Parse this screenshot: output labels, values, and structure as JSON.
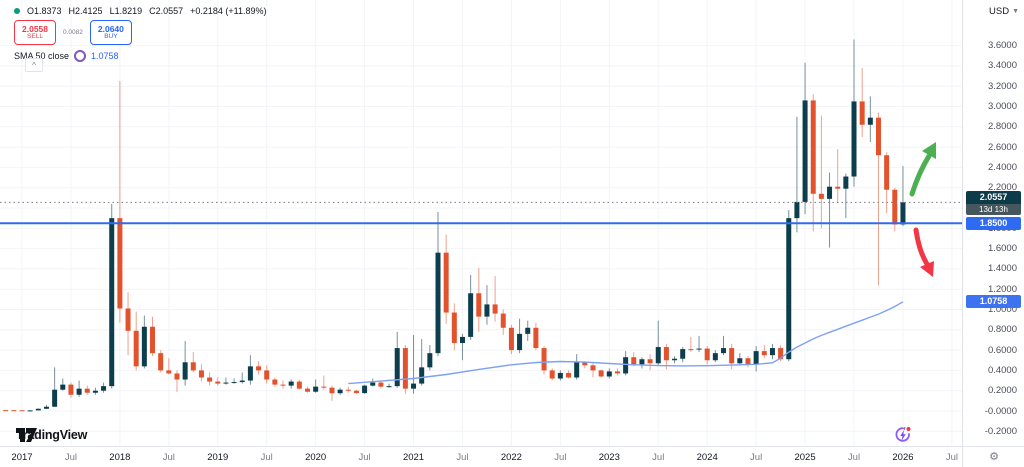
{
  "header": {
    "status_dot_color": "#089981",
    "ohlc": {
      "open": "O1.8373",
      "high": "H2.4125",
      "low": "L1.8219",
      "close": "C2.0557",
      "change": "+0.2184 (+11.89%)"
    },
    "sell": {
      "price": "2.0558",
      "label": "SELL"
    },
    "buy": {
      "price": "2.0640",
      "label": "BUY"
    },
    "spread": "0.0082",
    "indicator": {
      "name": "SMA 50 close",
      "value": "1.0758"
    },
    "collapse_label": "^"
  },
  "price_axis": {
    "currency": "USD",
    "ticks": [
      {
        "label": "3.6000",
        "value": 3.6
      },
      {
        "label": "3.4000",
        "value": 3.4
      },
      {
        "label": "3.2000",
        "value": 3.2
      },
      {
        "label": "3.0000",
        "value": 3.0
      },
      {
        "label": "2.8000",
        "value": 2.8
      },
      {
        "label": "2.6000",
        "value": 2.6
      },
      {
        "label": "2.4000",
        "value": 2.4
      },
      {
        "label": "2.2000",
        "value": 2.2
      },
      {
        "label": "2.0000",
        "value": 2.0
      },
      {
        "label": "1.8000",
        "value": 1.8
      },
      {
        "label": "1.6000",
        "value": 1.6
      },
      {
        "label": "1.4000",
        "value": 1.4
      },
      {
        "label": "1.2000",
        "value": 1.2
      },
      {
        "label": "1.0000",
        "value": 1.0
      },
      {
        "label": "0.8000",
        "value": 0.8
      },
      {
        "label": "0.6000",
        "value": 0.6
      },
      {
        "label": "0.4000",
        "value": 0.4
      },
      {
        "label": "0.2000",
        "value": 0.2
      },
      {
        "label": "-0.0000",
        "value": 0.0
      },
      {
        "label": "-0.2000",
        "value": -0.2
      }
    ]
  },
  "time_axis": {
    "ticks": [
      {
        "label": "2017",
        "m": 0,
        "major": true
      },
      {
        "label": "Jul",
        "m": 6,
        "major": false
      },
      {
        "label": "2018",
        "m": 12,
        "major": true
      },
      {
        "label": "Jul",
        "m": 18,
        "major": false
      },
      {
        "label": "2019",
        "m": 24,
        "major": true
      },
      {
        "label": "Jul",
        "m": 30,
        "major": false
      },
      {
        "label": "2020",
        "m": 36,
        "major": true
      },
      {
        "label": "Jul",
        "m": 42,
        "major": false
      },
      {
        "label": "2021",
        "m": 48,
        "major": true
      },
      {
        "label": "Jul",
        "m": 54,
        "major": false
      },
      {
        "label": "2022",
        "m": 60,
        "major": true
      },
      {
        "label": "Jul",
        "m": 66,
        "major": false
      },
      {
        "label": "2023",
        "m": 72,
        "major": true
      },
      {
        "label": "Jul",
        "m": 78,
        "major": false
      },
      {
        "label": "2024",
        "m": 84,
        "major": true
      },
      {
        "label": "Jul",
        "m": 90,
        "major": false
      },
      {
        "label": "2025",
        "m": 96,
        "major": true
      },
      {
        "label": "Jul",
        "m": 102,
        "major": false
      },
      {
        "label": "2026",
        "m": 108,
        "major": true
      },
      {
        "label": "Jul",
        "m": 114,
        "major": false
      }
    ]
  },
  "labels": {
    "current": {
      "price": "2.0557",
      "countdown": "13d 13h",
      "bg": "#0c3c49",
      "countdown_bg": "#45565c"
    },
    "level": {
      "price": "1.8500",
      "bg": "#2e6bf2"
    },
    "sma": {
      "price": "1.0758",
      "bg": "#3d72f0"
    }
  },
  "watermark": "TradingView",
  "chart_data": {
    "type": "candlestick",
    "timeframe": "monthly",
    "currency": "USD",
    "ylim": [
      -0.2,
      3.6
    ],
    "grid": true,
    "up_color": "#0d3e4d",
    "down_color": "#e2532d",
    "up_wick_color": "rgba(96,125,139,0.85)",
    "down_wick_color": "rgba(226,83,45,0.55)",
    "start_month_index": -3,
    "start_month": "2016-10",
    "months_ohlc": [
      [
        0.008,
        0.01,
        0.006,
        0.009
      ],
      [
        0.009,
        0.01,
        0.007,
        0.008
      ],
      [
        0.008,
        0.009,
        0.006,
        0.007
      ],
      [
        0.007,
        0.008,
        0.005,
        0.006
      ],
      [
        0.006,
        0.007,
        0.005,
        0.006
      ],
      [
        0.006,
        0.025,
        0.005,
        0.022
      ],
      [
        0.022,
        0.06,
        0.02,
        0.042
      ],
      [
        0.042,
        0.43,
        0.04,
        0.21
      ],
      [
        0.21,
        0.32,
        0.2,
        0.26
      ],
      [
        0.26,
        0.28,
        0.13,
        0.16
      ],
      [
        0.16,
        0.3,
        0.14,
        0.22
      ],
      [
        0.22,
        0.25,
        0.16,
        0.18
      ],
      [
        0.18,
        0.23,
        0.16,
        0.2
      ],
      [
        0.2,
        0.28,
        0.18,
        0.245
      ],
      [
        0.245,
        2.04,
        0.22,
        1.9
      ],
      [
        1.9,
        3.25,
        0.87,
        1.01
      ],
      [
        1.01,
        1.17,
        0.55,
        0.79
      ],
      [
        0.79,
        0.98,
        0.4,
        0.44
      ],
      [
        0.44,
        0.94,
        0.42,
        0.83
      ],
      [
        0.83,
        0.93,
        0.54,
        0.57
      ],
      [
        0.57,
        0.6,
        0.38,
        0.4
      ],
      [
        0.4,
        0.52,
        0.36,
        0.37
      ],
      [
        0.37,
        0.4,
        0.19,
        0.31
      ],
      [
        0.31,
        0.69,
        0.25,
        0.48
      ],
      [
        0.48,
        0.58,
        0.38,
        0.4
      ],
      [
        0.4,
        0.46,
        0.29,
        0.33
      ],
      [
        0.33,
        0.38,
        0.25,
        0.29
      ],
      [
        0.29,
        0.33,
        0.25,
        0.27
      ],
      [
        0.27,
        0.33,
        0.26,
        0.28
      ],
      [
        0.28,
        0.32,
        0.27,
        0.285
      ],
      [
        0.285,
        0.38,
        0.27,
        0.3
      ],
      [
        0.3,
        0.55,
        0.26,
        0.44
      ],
      [
        0.44,
        0.49,
        0.36,
        0.4
      ],
      [
        0.4,
        0.45,
        0.27,
        0.31
      ],
      [
        0.31,
        0.33,
        0.24,
        0.26
      ],
      [
        0.26,
        0.3,
        0.22,
        0.25
      ],
      [
        0.25,
        0.31,
        0.22,
        0.29
      ],
      [
        0.29,
        0.31,
        0.21,
        0.22
      ],
      [
        0.22,
        0.24,
        0.18,
        0.19
      ],
      [
        0.19,
        0.31,
        0.18,
        0.24
      ],
      [
        0.24,
        0.35,
        0.21,
        0.23
      ],
      [
        0.23,
        0.25,
        0.1,
        0.175
      ],
      [
        0.175,
        0.23,
        0.16,
        0.21
      ],
      [
        0.21,
        0.24,
        0.18,
        0.2
      ],
      [
        0.2,
        0.21,
        0.17,
        0.176
      ],
      [
        0.176,
        0.26,
        0.17,
        0.25
      ],
      [
        0.25,
        0.32,
        0.24,
        0.28
      ],
      [
        0.28,
        0.3,
        0.22,
        0.24
      ],
      [
        0.24,
        0.27,
        0.23,
        0.245
      ],
      [
        0.245,
        0.78,
        0.23,
        0.62
      ],
      [
        0.62,
        0.65,
        0.17,
        0.22
      ],
      [
        0.22,
        0.75,
        0.17,
        0.27
      ],
      [
        0.27,
        0.71,
        0.25,
        0.43
      ],
      [
        0.43,
        0.65,
        0.4,
        0.57
      ],
      [
        0.57,
        1.96,
        0.54,
        1.56
      ],
      [
        1.56,
        1.74,
        0.86,
        0.97
      ],
      [
        0.97,
        1.06,
        0.6,
        0.67
      ],
      [
        0.67,
        0.76,
        0.5,
        0.73
      ],
      [
        0.73,
        1.34,
        0.7,
        1.16
      ],
      [
        1.16,
        1.41,
        0.78,
        0.93
      ],
      [
        0.93,
        1.24,
        0.85,
        1.05
      ],
      [
        1.05,
        1.33,
        0.88,
        0.96
      ],
      [
        0.96,
        1.0,
        0.75,
        0.82
      ],
      [
        0.82,
        0.85,
        0.56,
        0.6
      ],
      [
        0.6,
        0.91,
        0.57,
        0.76
      ],
      [
        0.76,
        0.89,
        0.69,
        0.82
      ],
      [
        0.82,
        0.87,
        0.6,
        0.62
      ],
      [
        0.62,
        0.64,
        0.36,
        0.4
      ],
      [
        0.4,
        0.42,
        0.3,
        0.32
      ],
      [
        0.32,
        0.4,
        0.3,
        0.375
      ],
      [
        0.375,
        0.4,
        0.32,
        0.33
      ],
      [
        0.33,
        0.56,
        0.31,
        0.48
      ],
      [
        0.48,
        0.49,
        0.42,
        0.45
      ],
      [
        0.45,
        0.47,
        0.33,
        0.4
      ],
      [
        0.4,
        0.41,
        0.33,
        0.34
      ],
      [
        0.34,
        0.42,
        0.32,
        0.39
      ],
      [
        0.39,
        0.42,
        0.35,
        0.37
      ],
      [
        0.37,
        0.59,
        0.35,
        0.53
      ],
      [
        0.53,
        0.58,
        0.44,
        0.46
      ],
      [
        0.46,
        0.53,
        0.42,
        0.51
      ],
      [
        0.51,
        0.56,
        0.4,
        0.47
      ],
      [
        0.47,
        0.89,
        0.45,
        0.63
      ],
      [
        0.63,
        0.66,
        0.41,
        0.5
      ],
      [
        0.5,
        0.54,
        0.47,
        0.515
      ],
      [
        0.515,
        0.63,
        0.48,
        0.61
      ],
      [
        0.61,
        0.73,
        0.58,
        0.605
      ],
      [
        0.605,
        0.74,
        0.58,
        0.615
      ],
      [
        0.615,
        0.64,
        0.46,
        0.5
      ],
      [
        0.5,
        0.6,
        0.48,
        0.57
      ],
      [
        0.57,
        0.74,
        0.55,
        0.62
      ],
      [
        0.62,
        0.66,
        0.41,
        0.47
      ],
      [
        0.47,
        0.57,
        0.46,
        0.52
      ],
      [
        0.52,
        0.54,
        0.43,
        0.46
      ],
      [
        0.46,
        0.64,
        0.39,
        0.59
      ],
      [
        0.59,
        0.65,
        0.52,
        0.55
      ],
      [
        0.55,
        0.66,
        0.51,
        0.62
      ],
      [
        0.62,
        0.65,
        0.49,
        0.51
      ],
      [
        0.51,
        1.98,
        0.49,
        1.9
      ],
      [
        1.9,
        2.9,
        1.76,
        2.06
      ],
      [
        2.06,
        3.43,
        1.94,
        3.06
      ],
      [
        3.06,
        3.12,
        1.77,
        2.14
      ],
      [
        2.14,
        2.91,
        1.8,
        2.09
      ],
      [
        2.09,
        2.35,
        1.61,
        2.21
      ],
      [
        2.21,
        2.58,
        2.05,
        2.19
      ],
      [
        2.19,
        2.34,
        1.9,
        2.31
      ],
      [
        2.31,
        3.66,
        2.21,
        3.05
      ],
      [
        3.05,
        3.38,
        2.7,
        2.82
      ],
      [
        2.82,
        3.1,
        2.65,
        2.89
      ],
      [
        2.89,
        2.94,
        1.24,
        2.52
      ],
      [
        2.52,
        2.55,
        1.95,
        2.18
      ],
      [
        2.18,
        2.2,
        1.77,
        1.8373
      ],
      [
        1.8373,
        2.4125,
        1.8219,
        2.0557
      ]
    ],
    "sma_50": {
      "name": "SMA 50 close",
      "color": "#7da1f5",
      "points": [
        [
          40,
          0.27
        ],
        [
          44,
          0.295
        ],
        [
          48,
          0.32
        ],
        [
          52,
          0.36
        ],
        [
          56,
          0.41
        ],
        [
          60,
          0.455
        ],
        [
          63,
          0.478
        ],
        [
          66,
          0.488
        ],
        [
          69,
          0.482
        ],
        [
          72,
          0.468
        ],
        [
          75,
          0.455
        ],
        [
          78,
          0.447
        ],
        [
          81,
          0.444
        ],
        [
          84,
          0.446
        ],
        [
          87,
          0.452
        ],
        [
          90,
          0.46
        ],
        [
          92,
          0.475
        ],
        [
          93,
          0.52
        ],
        [
          94,
          0.58
        ],
        [
          95,
          0.63
        ],
        [
          96,
          0.67
        ],
        [
          97,
          0.71
        ],
        [
          98,
          0.745
        ],
        [
          99,
          0.775
        ],
        [
          100,
          0.805
        ],
        [
          101,
          0.835
        ],
        [
          102,
          0.865
        ],
        [
          103,
          0.895
        ],
        [
          104,
          0.925
        ],
        [
          105,
          0.955
        ],
        [
          106,
          0.99
        ],
        [
          107,
          1.03
        ],
        [
          108,
          1.076
        ]
      ],
      "last_value": 1.0758
    },
    "horizontal_line": {
      "value": 1.85,
      "color": "#2e6bf2"
    },
    "current_price": 2.0557,
    "current_price_line_color": "#787b86",
    "annotations": [
      {
        "type": "arrow-up",
        "color": "#4caf50"
      },
      {
        "type": "arrow-down",
        "color": "#f23645"
      },
      {
        "type": "flash-sticker",
        "color": "#8b5cf6",
        "dot_color": "#f23645"
      }
    ]
  }
}
